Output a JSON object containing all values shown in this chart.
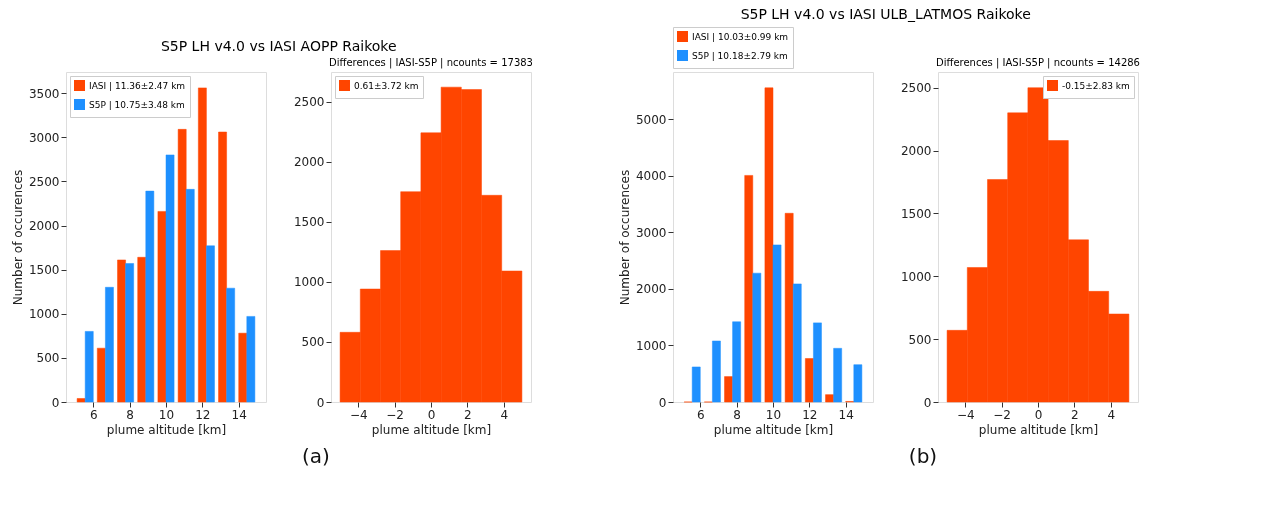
{
  "chart_data": [
    {
      "type": "histogram",
      "title": "S5P LH v4.0 vs IASI AOPP Raikoke",
      "annotations": [
        "(a)"
      ],
      "xlabel": "plume altitude [km]",
      "ylabel": "Number of occurences",
      "bins": [
        5,
        6.111,
        7.222,
        8.333,
        9.444,
        10.556,
        11.667,
        12.778,
        13.889,
        15
      ],
      "series": [
        {
          "name": "IASI | 11.36±2.47 km",
          "color": "#ff4500",
          "values": [
            40,
            610,
            1610,
            1640,
            2160,
            3090,
            3560,
            3060,
            780
          ]
        },
        {
          "name": "S5P | 10.75±3.48 km",
          "color": "#1e90ff",
          "values": [
            800,
            1300,
            1570,
            2390,
            2800,
            2410,
            1770,
            1290,
            970
          ]
        }
      ],
      "xlim": [
        4.5,
        15.5
      ],
      "xticks": [
        6,
        8,
        10,
        12,
        14
      ],
      "ylim": [
        0,
        3740
      ],
      "yticks": [
        0,
        500,
        1000,
        1500,
        2000,
        2500,
        3000,
        3500
      ],
      "legend": "top left"
    },
    {
      "type": "histogram",
      "title": "Differences | IASI-S5P | ncounts = 17383",
      "xlabel": "plume altitude [km]",
      "bins": [
        -5,
        -3.889,
        -2.778,
        -1.667,
        -0.556,
        0.556,
        1.667,
        2.778,
        3.889,
        5
      ],
      "series": [
        {
          "name": "0.61±3.72 km",
          "color": "#ff4500",
          "values": [
            580,
            940,
            1260,
            1750,
            2240,
            2620,
            2600,
            1720,
            1090
          ]
        }
      ],
      "xlim": [
        -5.5,
        5.5
      ],
      "xticks": [
        -4,
        -2,
        0,
        2,
        4
      ],
      "ylim": [
        0,
        2746
      ],
      "yticks": [
        0,
        500,
        1000,
        1500,
        2000,
        2500
      ],
      "legend": "top left"
    },
    {
      "type": "histogram",
      "title": "S5P LH v4.0 vs IASI ULB_LATMOS Raikoke",
      "annotations": [
        "(b)"
      ],
      "xlabel": "plume altitude [km]",
      "ylabel": "Number of occurences",
      "bins": [
        5,
        6.111,
        7.222,
        8.333,
        9.444,
        10.556,
        11.667,
        12.778,
        13.889,
        15
      ],
      "series": [
        {
          "name": "IASI | 10.03±0.99 km",
          "color": "#ff4500",
          "values": [
            0,
            0,
            450,
            4010,
            5560,
            3340,
            770,
            130,
            10
          ]
        },
        {
          "name": "S5P | 10.18±2.79 km",
          "color": "#1e90ff",
          "values": [
            620,
            1080,
            1420,
            2280,
            2780,
            2090,
            1400,
            950,
            660
          ]
        }
      ],
      "xlim": [
        4.5,
        15.5
      ],
      "xticks": [
        6,
        8,
        10,
        12,
        14
      ],
      "ylim": [
        0,
        5840
      ],
      "yticks": [
        0,
        1000,
        2000,
        3000,
        4000,
        5000
      ],
      "legend": "top"
    },
    {
      "type": "histogram",
      "title": "Differences | IASI-S5P | ncounts = 14286",
      "xlabel": "plume altitude [km]",
      "bins": [
        -5,
        -3.889,
        -2.778,
        -1.667,
        -0.556,
        0.556,
        1.667,
        2.778,
        3.889,
        5
      ],
      "series": [
        {
          "name": "-0.15±2.83 km",
          "color": "#ff4500",
          "values": [
            570,
            1070,
            1770,
            2300,
            2500,
            2080,
            1290,
            880,
            700
          ]
        }
      ],
      "xlim": [
        -5.5,
        5.5
      ],
      "xticks": [
        -4,
        -2,
        0,
        2,
        4
      ],
      "ylim": [
        0,
        2625
      ],
      "yticks": [
        0,
        500,
        1000,
        1500,
        2000,
        2500
      ],
      "legend": "top right"
    }
  ]
}
